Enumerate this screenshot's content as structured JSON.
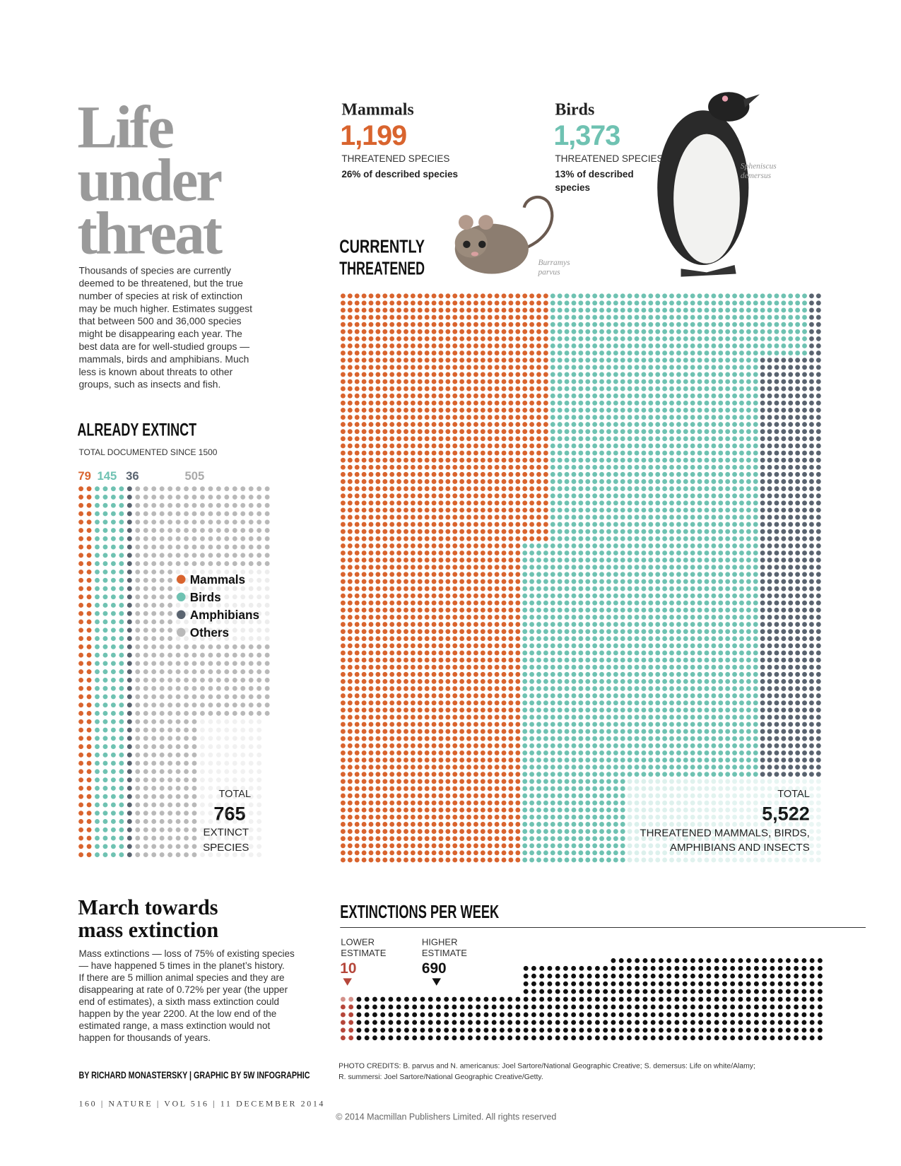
{
  "header": {
    "title_lines": [
      "Life",
      "under",
      "threat"
    ],
    "intro_lines": [
      "Thousands of species are currently",
      "deemed to be threatened, but the true",
      "number of species at risk of extinction",
      "may be much higher. Estimates suggest",
      "that between 500 and 36,000 species",
      "might be disappearing each year. The",
      "best data are for well-studied groups —",
      "mammals, birds and amphibians. Much",
      "less is known about threats to other",
      "groups, such as insects and fish."
    ]
  },
  "mammals": {
    "name": "Mammals",
    "count": "1,199",
    "label": "THREATENED SPECIES",
    "share": "26% of described species",
    "caption_lines": [
      "Burramys",
      "parvus"
    ]
  },
  "birds": {
    "name": "Birds",
    "count": "1,373",
    "label": "THREATENED SPECIES",
    "share_lines": [
      "13% of described",
      "species"
    ],
    "caption_lines": [
      "Spheniscus",
      "demersus"
    ]
  },
  "currently_threatened": {
    "heading_lines": [
      "CURRENTLY",
      "THREATENED"
    ],
    "total_label": "TOTAL",
    "total": "5,522",
    "caption_lines": [
      "THREATENED MAMMALS, BIRDS,",
      "AMPHIBIANS AND INSECTS"
    ]
  },
  "already_extinct": {
    "heading": "ALREADY EXTINCT",
    "subheading": "TOTAL DOCUMENTED SINCE 1500",
    "counts": [
      "79",
      "145",
      "36",
      "505"
    ],
    "legend": [
      "Mammals",
      "Birds",
      "Amphibians",
      "Others"
    ],
    "total_label": "TOTAL",
    "total": "765",
    "caption_lines": [
      "EXTINCT",
      "SPECIES"
    ]
  },
  "march": {
    "title_lines": [
      "March towards",
      "mass extinction"
    ],
    "body_lines": [
      "Mass extinctions — loss of 75% of existing species",
      "— have happened 5 times in the planet’s history.",
      "If there are 5 million animal species and they are",
      "disappearing at rate of 0.72% per year (the upper",
      "end of estimates), a sixth mass extinction could",
      "happen by the year 2200. At the low end of the",
      "estimated range, a mass extinction would not",
      "happen for thousands of years."
    ]
  },
  "extinctions_per_week": {
    "heading": "EXTINCTIONS PER WEEK",
    "lower": {
      "label_lines": [
        "LOWER",
        "ESTIMATE"
      ],
      "value": "10"
    },
    "higher": {
      "label_lines": [
        "HIGHER",
        "ESTIMATE"
      ],
      "value": "690"
    }
  },
  "credits_lines": [
    "PHOTO CREDITS: B. parvus and N. americanus: Joel Sartore/National Geographic Creative; S. demersus: Life on white/Alamy;",
    "R. summersi: Joel Sartore/National Geographic Creative/Getty."
  ],
  "byline": "BY RICHARD MONASTERSKY | GRAPHIC BY 5W INFOGRAPHIC",
  "footer": {
    "folio": "160 | NATURE | VOL 516 | 11 DECEMBER 2014",
    "copyright": "© 2014 Macmillan Publishers Limited. All rights reserved"
  }
}
